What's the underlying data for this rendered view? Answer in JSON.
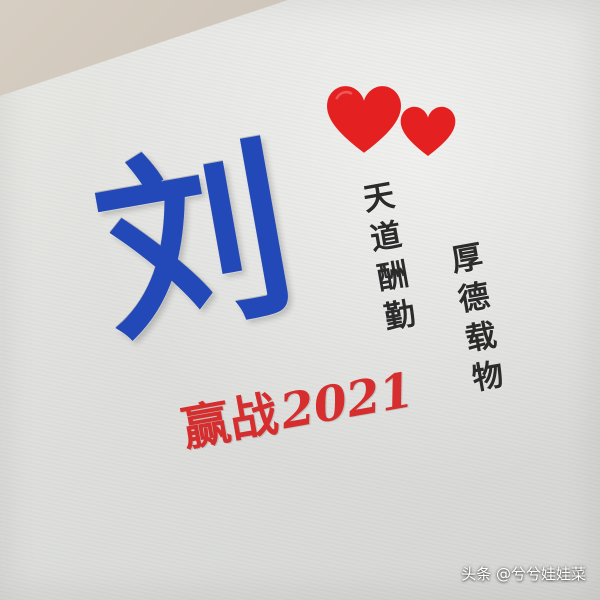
{
  "image": {
    "description_free": true
  },
  "card": {
    "big_character": "刘",
    "motto_column_1": [
      "天",
      "道",
      "酬",
      "勤"
    ],
    "motto_column_2": [
      "厚",
      "德",
      "载",
      "物"
    ],
    "slogan_chinese": "赢战",
    "slogan_year": "2021"
  },
  "decorations": {
    "heart_icons": [
      "heart-icon",
      "heart-icon"
    ]
  },
  "watermark": {
    "text": "头条 @兮兮娃娃菜"
  },
  "colors": {
    "paper": "#e4e4e1",
    "accent_blue": "#2348b8",
    "accent_red": "#d62e2e",
    "ink": "#2b2b2b",
    "heart_red": "#e52020"
  }
}
